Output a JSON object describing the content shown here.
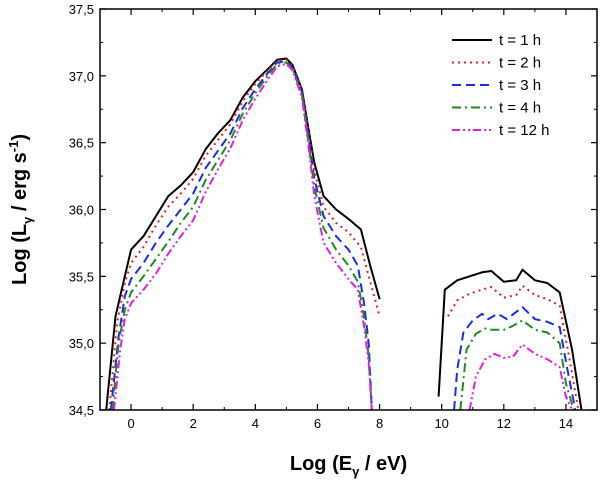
{
  "chart_data": {
    "type": "line",
    "xlabel": "Log (E_γ / eV)",
    "xlabel_main": "Log (E",
    "xlabel_sub": "γ",
    "xlabel_tail": " / eV)",
    "ylabel": "Log (L_γ / erg s^-1)",
    "ylabel_main": "Log (L",
    "ylabel_sub": "γ",
    "ylabel_mid": " / erg s",
    "ylabel_sup": "-1",
    "ylabel_tail": ")",
    "xlim": [
      -1,
      15
    ],
    "ylim": [
      34.5,
      37.5
    ],
    "xticks": [
      0,
      2,
      4,
      6,
      8,
      10,
      12,
      14
    ],
    "xtick_labels": [
      "0",
      "2",
      "4",
      "6",
      "8",
      "10",
      "12",
      "14"
    ],
    "yticks": [
      34.5,
      35.0,
      35.5,
      36.0,
      36.5,
      37.0,
      37.5
    ],
    "ytick_labels": [
      "34,5",
      "35,0",
      "35,5",
      "36,0",
      "36,5",
      "37,0",
      "37,5"
    ],
    "legend_position": "top-right",
    "series": [
      {
        "name": "t = 1 h",
        "color": "#000000",
        "dash": "solid",
        "segments": [
          [
            [
              -0.8,
              34.5
            ],
            [
              -0.5,
              35.2
            ],
            [
              -0.2,
              35.5
            ],
            [
              0.0,
              35.7
            ],
            [
              0.4,
              35.8
            ],
            [
              0.8,
              35.95
            ],
            [
              1.2,
              36.1
            ],
            [
              1.6,
              36.18
            ],
            [
              2.0,
              36.28
            ],
            [
              2.4,
              36.45
            ],
            [
              2.8,
              36.57
            ],
            [
              3.2,
              36.67
            ],
            [
              3.6,
              36.84
            ],
            [
              4.0,
              36.96
            ],
            [
              4.4,
              37.05
            ],
            [
              4.7,
              37.12
            ],
            [
              5.0,
              37.13
            ],
            [
              5.2,
              37.08
            ],
            [
              5.5,
              36.9
            ],
            [
              5.7,
              36.62
            ],
            [
              5.9,
              36.35
            ],
            [
              6.2,
              36.1
            ],
            [
              6.6,
              36.0
            ],
            [
              7.0,
              35.93
            ],
            [
              7.4,
              35.85
            ],
            [
              7.7,
              35.58
            ],
            [
              8.0,
              35.33
            ]
          ],
          [
            [
              9.9,
              34.6
            ],
            [
              10.1,
              35.4
            ],
            [
              10.5,
              35.47
            ],
            [
              10.9,
              35.5
            ],
            [
              11.3,
              35.53
            ],
            [
              11.6,
              35.54
            ],
            [
              12.0,
              35.46
            ],
            [
              12.4,
              35.47
            ],
            [
              12.6,
              35.55
            ],
            [
              13.0,
              35.47
            ],
            [
              13.4,
              35.45
            ],
            [
              13.8,
              35.38
            ],
            [
              14.2,
              34.95
            ],
            [
              14.5,
              34.5
            ]
          ]
        ]
      },
      {
        "name": "t = 2 h",
        "color": "#e02020",
        "dash": "2,4",
        "segments": [
          [
            [
              -0.7,
              34.5
            ],
            [
              -0.45,
              35.15
            ],
            [
              -0.2,
              35.45
            ],
            [
              0.0,
              35.6
            ],
            [
              0.4,
              35.72
            ],
            [
              0.8,
              35.88
            ],
            [
              1.2,
              36.02
            ],
            [
              1.6,
              36.12
            ],
            [
              2.0,
              36.23
            ],
            [
              2.4,
              36.4
            ],
            [
              2.8,
              36.52
            ],
            [
              3.2,
              36.64
            ],
            [
              3.6,
              36.81
            ],
            [
              4.0,
              36.94
            ],
            [
              4.4,
              37.04
            ],
            [
              4.7,
              37.11
            ],
            [
              5.0,
              37.12
            ],
            [
              5.2,
              37.07
            ],
            [
              5.5,
              36.9
            ],
            [
              5.7,
              36.6
            ],
            [
              5.9,
              36.3
            ],
            [
              6.2,
              36.02
            ],
            [
              6.6,
              35.9
            ],
            [
              7.0,
              35.83
            ],
            [
              7.4,
              35.72
            ],
            [
              7.7,
              35.46
            ],
            [
              8.0,
              35.2
            ]
          ],
          [
            [
              10.2,
              35.2
            ],
            [
              10.5,
              35.32
            ],
            [
              10.9,
              35.37
            ],
            [
              11.3,
              35.4
            ],
            [
              11.6,
              35.42
            ],
            [
              12.0,
              35.34
            ],
            [
              12.4,
              35.36
            ],
            [
              12.6,
              35.43
            ],
            [
              13.0,
              35.36
            ],
            [
              13.4,
              35.33
            ],
            [
              13.8,
              35.28
            ],
            [
              14.1,
              34.9
            ],
            [
              14.4,
              34.5
            ]
          ]
        ]
      },
      {
        "name": "t = 3 h",
        "color": "#1a2ee0",
        "dash": "9,5",
        "segments": [
          [
            [
              -0.65,
              34.5
            ],
            [
              -0.4,
              35.05
            ],
            [
              -0.2,
              35.35
            ],
            [
              0.0,
              35.48
            ],
            [
              0.4,
              35.6
            ],
            [
              0.8,
              35.75
            ],
            [
              1.2,
              35.88
            ],
            [
              1.6,
              36.0
            ],
            [
              2.0,
              36.12
            ],
            [
              2.4,
              36.31
            ],
            [
              2.8,
              36.44
            ],
            [
              3.2,
              36.57
            ],
            [
              3.6,
              36.76
            ],
            [
              4.0,
              36.9
            ],
            [
              4.4,
              37.02
            ],
            [
              4.7,
              37.1
            ],
            [
              5.0,
              37.11
            ],
            [
              5.2,
              37.06
            ],
            [
              5.5,
              36.88
            ],
            [
              5.7,
              36.57
            ],
            [
              5.9,
              36.23
            ],
            [
              6.2,
              35.95
            ],
            [
              6.6,
              35.8
            ],
            [
              7.0,
              35.7
            ],
            [
              7.3,
              35.58
            ],
            [
              7.5,
              35.3
            ],
            [
              7.65,
              35.0
            ],
            [
              7.75,
              34.5
            ]
          ],
          [
            [
              10.4,
              34.5
            ],
            [
              10.5,
              34.8
            ],
            [
              10.7,
              35.08
            ],
            [
              11.0,
              35.17
            ],
            [
              11.3,
              35.22
            ],
            [
              11.5,
              35.18
            ],
            [
              11.8,
              35.22
            ],
            [
              12.1,
              35.18
            ],
            [
              12.6,
              35.27
            ],
            [
              13.0,
              35.18
            ],
            [
              13.4,
              35.16
            ],
            [
              13.8,
              35.12
            ],
            [
              14.05,
              34.8
            ],
            [
              14.3,
              34.5
            ]
          ]
        ]
      },
      {
        "name": "t = 4 h",
        "color": "#208a20",
        "dash": "9,4,2,4",
        "segments": [
          [
            [
              -0.6,
              34.5
            ],
            [
              -0.4,
              35.0
            ],
            [
              -0.2,
              35.25
            ],
            [
              0.0,
              35.38
            ],
            [
              0.4,
              35.5
            ],
            [
              0.8,
              35.63
            ],
            [
              1.2,
              35.76
            ],
            [
              1.6,
              35.9
            ],
            [
              2.0,
              36.02
            ],
            [
              2.4,
              36.22
            ],
            [
              2.8,
              36.37
            ],
            [
              3.2,
              36.52
            ],
            [
              3.6,
              36.72
            ],
            [
              4.0,
              36.87
            ],
            [
              4.4,
              37.0
            ],
            [
              4.7,
              37.09
            ],
            [
              5.0,
              37.1
            ],
            [
              5.2,
              37.05
            ],
            [
              5.5,
              36.86
            ],
            [
              5.7,
              36.53
            ],
            [
              5.9,
              36.17
            ],
            [
              6.2,
              35.86
            ],
            [
              6.6,
              35.7
            ],
            [
              7.0,
              35.58
            ],
            [
              7.3,
              35.46
            ],
            [
              7.5,
              35.2
            ],
            [
              7.65,
              34.9
            ],
            [
              7.75,
              34.5
            ]
          ],
          [
            [
              10.6,
              34.5
            ],
            [
              10.8,
              34.95
            ],
            [
              11.1,
              35.07
            ],
            [
              11.4,
              35.11
            ],
            [
              11.6,
              35.1
            ],
            [
              12.0,
              35.1
            ],
            [
              12.3,
              35.13
            ],
            [
              12.6,
              35.17
            ],
            [
              13.0,
              35.1
            ],
            [
              13.4,
              35.08
            ],
            [
              13.8,
              35.0
            ],
            [
              14.0,
              34.7
            ],
            [
              14.25,
              34.5
            ]
          ]
        ]
      },
      {
        "name": "t = 12 h",
        "color": "#e020e0",
        "dash": "8,3,2,3,2,3",
        "segments": [
          [
            [
              -0.55,
              34.5
            ],
            [
              -0.35,
              34.95
            ],
            [
              -0.2,
              35.18
            ],
            [
              0.0,
              35.3
            ],
            [
              0.4,
              35.4
            ],
            [
              0.8,
              35.52
            ],
            [
              1.2,
              35.67
            ],
            [
              1.6,
              35.8
            ],
            [
              2.0,
              35.92
            ],
            [
              2.4,
              36.13
            ],
            [
              2.8,
              36.3
            ],
            [
              3.2,
              36.46
            ],
            [
              3.6,
              36.67
            ],
            [
              4.0,
              36.83
            ],
            [
              4.4,
              36.97
            ],
            [
              4.7,
              37.07
            ],
            [
              5.0,
              37.09
            ],
            [
              5.2,
              37.04
            ],
            [
              5.5,
              36.84
            ],
            [
              5.7,
              36.5
            ],
            [
              5.9,
              36.1
            ],
            [
              6.2,
              35.75
            ],
            [
              6.6,
              35.6
            ],
            [
              7.0,
              35.48
            ],
            [
              7.3,
              35.4
            ],
            [
              7.5,
              35.13
            ],
            [
              7.65,
              34.85
            ],
            [
              7.75,
              34.5
            ]
          ],
          [
            [
              10.9,
              34.5
            ],
            [
              11.1,
              34.75
            ],
            [
              11.4,
              34.88
            ],
            [
              11.7,
              34.92
            ],
            [
              12.0,
              34.89
            ],
            [
              12.3,
              34.9
            ],
            [
              12.6,
              34.99
            ],
            [
              13.0,
              34.92
            ],
            [
              13.4,
              34.88
            ],
            [
              13.8,
              34.82
            ],
            [
              14.0,
              34.6
            ],
            [
              14.2,
              34.5
            ]
          ]
        ]
      }
    ]
  }
}
